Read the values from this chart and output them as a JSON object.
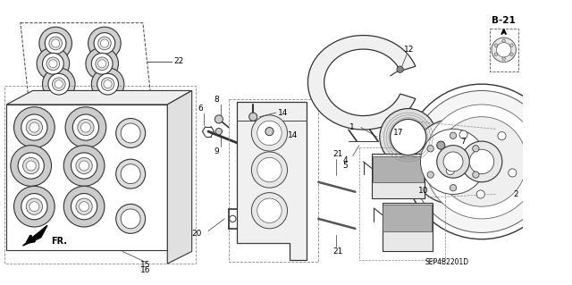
{
  "background_color": "#ffffff",
  "fig_width": 6.4,
  "fig_height": 3.19,
  "dpi": 100,
  "diagram_code": "SEP4B2201D",
  "section_label": "B-21",
  "text_color": "#000000",
  "line_color": "#1a1a1a",
  "lw_main": 0.8,
  "lw_thin": 0.5,
  "fs_label": 6.5,
  "fs_code": 5.5
}
